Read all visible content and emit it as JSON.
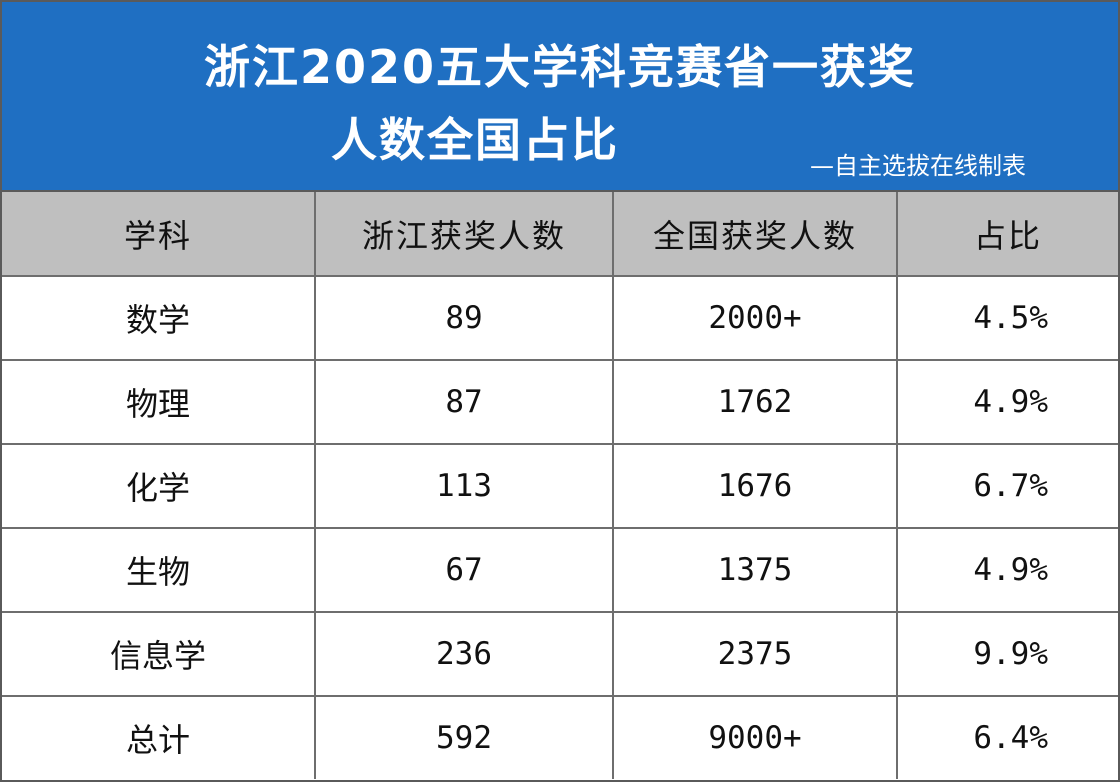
{
  "header": {
    "title_line1": "浙江2020五大学科竞赛省一获奖",
    "title_line2": "人数全国占比",
    "credit": "—自主选拔在线制表",
    "background_color": "#1f6fc2"
  },
  "table": {
    "columns": [
      "学科",
      "浙江获奖人数",
      "全国获奖人数",
      "占比"
    ],
    "rows": [
      {
        "subject": "数学",
        "zhejiang": "89",
        "national": "2000+",
        "ratio": "4.5%"
      },
      {
        "subject": "物理",
        "zhejiang": "87",
        "national": "1762",
        "ratio": "4.9%"
      },
      {
        "subject": "化学",
        "zhejiang": "113",
        "national": "1676",
        "ratio": "6.7%"
      },
      {
        "subject": "生物",
        "zhejiang": "67",
        "national": "1375",
        "ratio": "4.9%"
      },
      {
        "subject": "信息学",
        "zhejiang": "236",
        "national": "2375",
        "ratio": "9.9%"
      },
      {
        "subject": "总计",
        "zhejiang": "592",
        "national": "9000+",
        "ratio": "6.4%"
      }
    ],
    "header_color": "#bfbfbf"
  }
}
